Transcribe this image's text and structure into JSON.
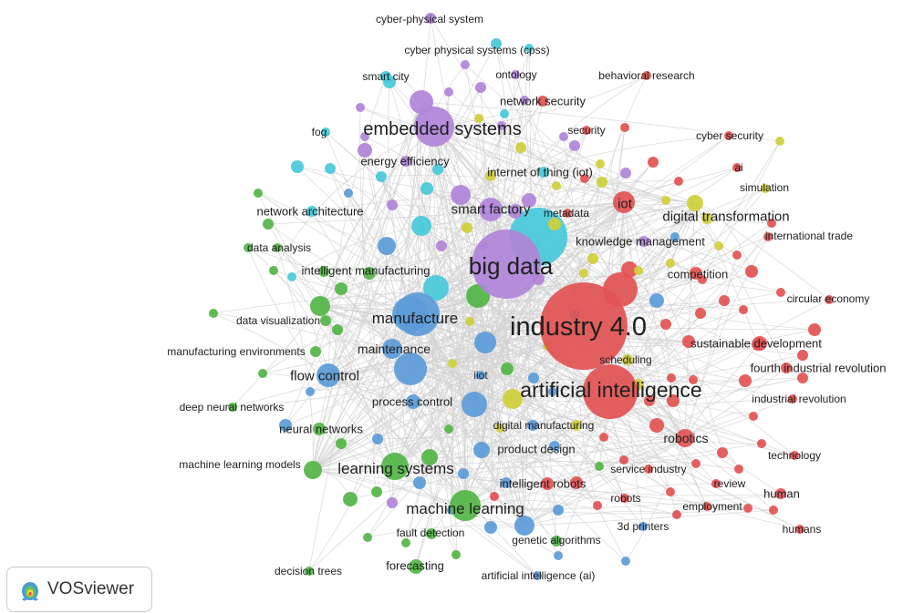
{
  "colors": {
    "red": "#e25353",
    "green": "#52b545",
    "blue": "#5c9bd8",
    "yellow": "#cfcf3b",
    "purple": "#b084d8",
    "cyan": "#47c9d9",
    "edge": "#d2d2d2"
  },
  "brand": {
    "name": "VOSviewer",
    "icon": "vosviewer-logo-icon"
  },
  "nodes": [
    {
      "label": "industry 4.0",
      "cluster": "red",
      "weight": 12
    },
    {
      "label": "artificial intelligence",
      "cluster": "red",
      "weight": 10
    },
    {
      "label": "big data",
      "cluster": "purple",
      "weight": 10
    },
    {
      "label": "iot",
      "cluster": "red",
      "weight": 4
    },
    {
      "label": "digital transformation",
      "cluster": "yellow",
      "weight": 4
    },
    {
      "label": "embedded systems",
      "cluster": "purple",
      "weight": 6
    },
    {
      "label": "manufacture",
      "cluster": "blue",
      "weight": 7
    },
    {
      "label": "machine learning",
      "cluster": "green",
      "weight": 6
    },
    {
      "label": "learning systems",
      "cluster": "green",
      "weight": 5
    },
    {
      "label": "flow control",
      "cluster": "blue",
      "weight": 4
    },
    {
      "label": "maintenance",
      "cluster": "blue",
      "weight": 4
    },
    {
      "label": "smart factory",
      "cluster": "purple",
      "weight": 4
    },
    {
      "label": "robotics",
      "cluster": "red",
      "weight": 3
    },
    {
      "label": "process control",
      "cluster": "blue",
      "weight": 3
    },
    {
      "label": "product design",
      "cluster": "blue",
      "weight": 3
    },
    {
      "label": "intelligent robots",
      "cluster": "red",
      "weight": 2
    },
    {
      "label": "digital manufacturing",
      "cluster": "blue",
      "weight": 2
    },
    {
      "label": "intelligent manufacturing",
      "cluster": "green",
      "weight": 2
    },
    {
      "label": "knowledge management",
      "cluster": "purple",
      "weight": 2
    },
    {
      "label": "competition",
      "cluster": "red",
      "weight": 2
    },
    {
      "label": "sustainable development",
      "cluster": "red",
      "weight": 2
    },
    {
      "label": "fourth industrial revolution",
      "cluster": "red",
      "weight": 2
    },
    {
      "label": "industrial revolution",
      "cluster": "red",
      "weight": 2
    },
    {
      "label": "neural networks",
      "cluster": "green",
      "weight": 2
    },
    {
      "label": "deep neural networks",
      "cluster": "green",
      "weight": 1
    },
    {
      "label": "machine learning models",
      "cluster": "green",
      "weight": 2
    },
    {
      "label": "manufacturing environments",
      "cluster": "green",
      "weight": 1
    },
    {
      "label": "data visualization",
      "cluster": "green",
      "weight": 2
    },
    {
      "label": "data analysis",
      "cluster": "green",
      "weight": 1
    },
    {
      "label": "network architecture",
      "cluster": "cyan",
      "weight": 2
    },
    {
      "label": "fog",
      "cluster": "cyan",
      "weight": 1
    },
    {
      "label": "smart city",
      "cluster": "cyan",
      "weight": 1
    },
    {
      "label": "energy efficiency",
      "cluster": "purple",
      "weight": 2
    },
    {
      "label": "internet of thing (iot)",
      "cluster": "cyan",
      "weight": 2
    },
    {
      "label": "cyber-physical system",
      "cluster": "purple",
      "weight": 2
    },
    {
      "label": "cyber physical systems (cpss)",
      "cluster": "cyan",
      "weight": 1
    },
    {
      "label": "ontology",
      "cluster": "purple",
      "weight": 1
    },
    {
      "label": "behavioral research",
      "cluster": "red",
      "weight": 1
    },
    {
      "label": "network security",
      "cluster": "red",
      "weight": 1
    },
    {
      "label": "security",
      "cluster": "red",
      "weight": 1
    },
    {
      "label": "cyber security",
      "cluster": "red",
      "weight": 1
    },
    {
      "label": "ai",
      "cluster": "red",
      "weight": 1
    },
    {
      "label": "simulation",
      "cluster": "yellow",
      "weight": 1
    },
    {
      "label": "metadata",
      "cluster": "red",
      "weight": 1
    },
    {
      "label": "international trade",
      "cluster": "red",
      "weight": 1
    },
    {
      "label": "circular economy",
      "cluster": "red",
      "weight": 1
    },
    {
      "label": "scheduling",
      "cluster": "yellow",
      "weight": 1
    },
    {
      "label": "iiot",
      "cluster": "blue",
      "weight": 1
    },
    {
      "label": "technology",
      "cluster": "red",
      "weight": 1
    },
    {
      "label": "service industry",
      "cluster": "red",
      "weight": 1
    },
    {
      "label": "review",
      "cluster": "red",
      "weight": 1
    },
    {
      "label": "human",
      "cluster": "red",
      "weight": 2
    },
    {
      "label": "employment",
      "cluster": "red",
      "weight": 1
    },
    {
      "label": "robots",
      "cluster": "red",
      "weight": 1
    },
    {
      "label": "humans",
      "cluster": "red",
      "weight": 1
    },
    {
      "label": "3d printers",
      "cluster": "blue",
      "weight": 1
    },
    {
      "label": "genetic algorithms",
      "cluster": "green",
      "weight": 1
    },
    {
      "label": "fault detection",
      "cluster": "green",
      "weight": 1
    },
    {
      "label": "forecasting",
      "cluster": "green",
      "weight": 2
    },
    {
      "label": "decision trees",
      "cluster": "green",
      "weight": 1
    },
    {
      "label": "artificial intelligence (ai)",
      "cluster": "blue",
      "weight": 1
    }
  ]
}
